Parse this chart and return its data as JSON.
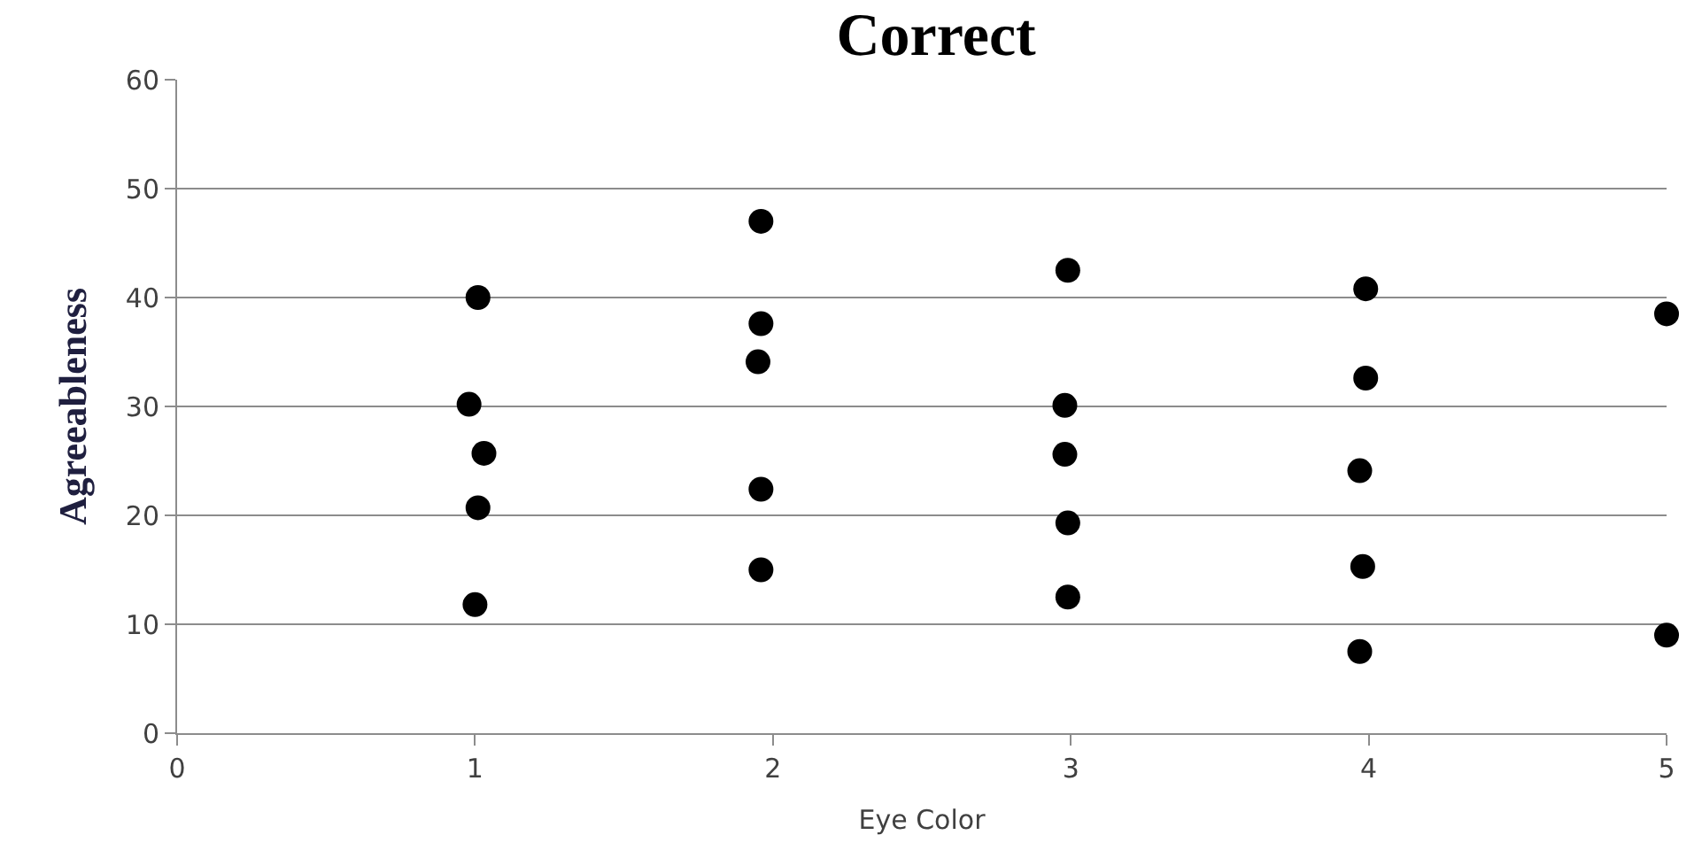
{
  "chart_data": {
    "type": "scatter",
    "title": "Correct",
    "xlabel": "Eye Color",
    "ylabel": "Agreeableness",
    "x": [
      1.01,
      0.98,
      1.03,
      1.01,
      1.0,
      1.96,
      1.96,
      1.95,
      1.96,
      1.96,
      2.99,
      2.98,
      2.98,
      2.99,
      2.99,
      3.99,
      3.99,
      3.97,
      3.98,
      3.97,
      5.0,
      5.0
    ],
    "series": [
      {
        "color": "#000000",
        "values": [
          40,
          30.2,
          25.7,
          20.7,
          11.8,
          47,
          37.6,
          34.1,
          22.4,
          15,
          42.5,
          30.1,
          25.6,
          19.3,
          12.5,
          40.8,
          32.6,
          24.1,
          15.3,
          7.5,
          38.5,
          9
        ]
      }
    ],
    "xlim": [
      0,
      5
    ],
    "xticks": [
      0,
      1,
      2,
      3,
      4,
      5
    ],
    "ylim": [
      0,
      60
    ],
    "yticks": [
      0,
      10,
      20,
      30,
      40,
      50,
      60
    ],
    "grid": "y",
    "marker": "circle"
  }
}
